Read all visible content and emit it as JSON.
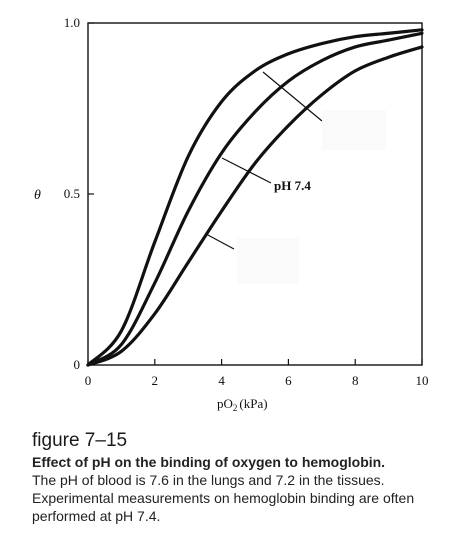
{
  "chart_data": {
    "type": "line",
    "xlabel": "pO",
    "xlabel_sub": "2",
    "xlabel_unit": "(kPa)",
    "ylabel": "θ",
    "xlim": [
      0,
      10
    ],
    "ylim": [
      0,
      1
    ],
    "x_ticks": [
      0,
      2,
      4,
      6,
      8,
      10
    ],
    "x_tick_labels": [
      "0",
      "2",
      "4",
      "6",
      "8",
      "10"
    ],
    "y_ticks": [
      0,
      0.5,
      1.0
    ],
    "y_tick_labels": [
      "0",
      "0.5",
      "1.0"
    ],
    "grid": false,
    "series": [
      {
        "x": [
          0,
          1,
          2,
          3,
          4,
          5,
          6,
          7,
          8,
          9,
          10
        ],
        "y": [
          0,
          0.1,
          0.36,
          0.61,
          0.77,
          0.86,
          0.91,
          0.94,
          0.96,
          0.97,
          0.98
        ]
      },
      {
        "x": [
          0,
          1,
          2,
          3,
          4,
          5,
          6,
          7,
          8,
          9,
          10
        ],
        "y": [
          0,
          0.06,
          0.24,
          0.45,
          0.62,
          0.74,
          0.83,
          0.89,
          0.93,
          0.95,
          0.97
        ]
      },
      {
        "x": [
          0,
          1,
          2,
          3,
          4,
          5,
          6,
          7,
          8,
          9,
          10
        ],
        "y": [
          0,
          0.04,
          0.15,
          0.3,
          0.45,
          0.59,
          0.7,
          0.79,
          0.86,
          0.9,
          0.93
        ]
      }
    ],
    "annotations": [
      {
        "text": "pH 7.4",
        "x": 5.6,
        "y": 0.53
      }
    ]
  },
  "caption": {
    "figure_number": "figure 7–15",
    "title": "Effect of pH on the binding of oxygen to hemoglobin.",
    "text": "The pH of blood is 7.6 in the lungs and 7.2 in the tissues. Experimental measurements on hemoglobin binding are often performed at pH 7.4."
  }
}
